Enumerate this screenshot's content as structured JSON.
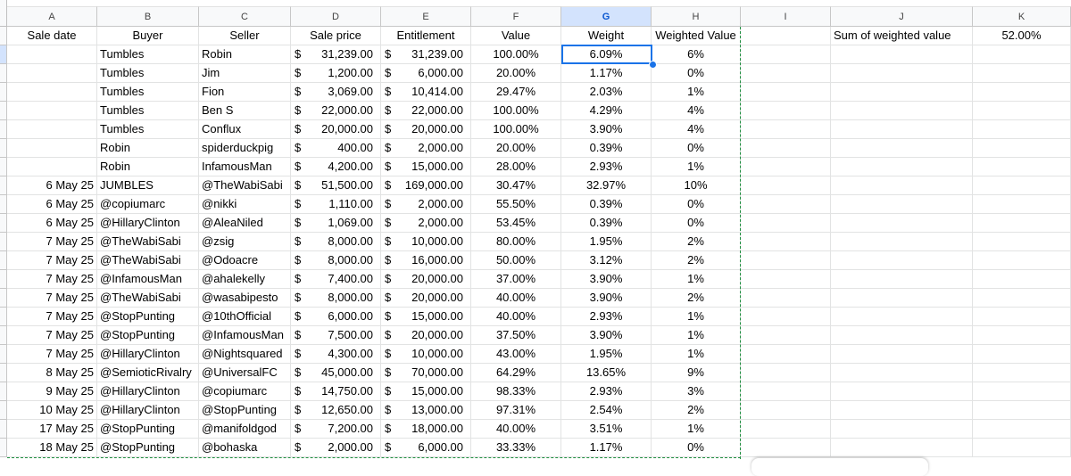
{
  "columns": [
    {
      "letter": "A",
      "header": "Sale date"
    },
    {
      "letter": "B",
      "header": "Buyer"
    },
    {
      "letter": "C",
      "header": "Seller"
    },
    {
      "letter": "D",
      "header": "Sale price"
    },
    {
      "letter": "E",
      "header": "Entitlement"
    },
    {
      "letter": "F",
      "header": "Value"
    },
    {
      "letter": "G",
      "header": "Weight"
    },
    {
      "letter": "H",
      "header": "Weighted Value"
    },
    {
      "letter": "I",
      "header": ""
    },
    {
      "letter": "J",
      "header": "Sum of weighted value"
    },
    {
      "letter": "K",
      "header": "52.00%"
    }
  ],
  "selected_cell": "G2",
  "colors": {
    "selection": "#1a73e8",
    "selected_header": "#d3e3fd",
    "copy_border": "#1e8e3e"
  },
  "currency_symbol": "$",
  "rows": [
    {
      "date": "",
      "buyer": "Tumbles",
      "seller": "Robin",
      "price": "31,239.00",
      "ent": "31,239.00",
      "value": "100.00%",
      "weight": "6.09%",
      "wv": "6%"
    },
    {
      "date": "",
      "buyer": "Tumbles",
      "seller": "Jim",
      "price": "1,200.00",
      "ent": "6,000.00",
      "value": "20.00%",
      "weight": "1.17%",
      "wv": "0%"
    },
    {
      "date": "",
      "buyer": "Tumbles",
      "seller": "Fion",
      "price": "3,069.00",
      "ent": "10,414.00",
      "value": "29.47%",
      "weight": "2.03%",
      "wv": "1%"
    },
    {
      "date": "",
      "buyer": "Tumbles",
      "seller": "Ben S",
      "price": "22,000.00",
      "ent": "22,000.00",
      "value": "100.00%",
      "weight": "4.29%",
      "wv": "4%"
    },
    {
      "date": "",
      "buyer": "Tumbles",
      "seller": "Conflux",
      "price": "20,000.00",
      "ent": "20,000.00",
      "value": "100.00%",
      "weight": "3.90%",
      "wv": "4%"
    },
    {
      "date": "",
      "buyer": "Robin",
      "seller": "spiderduckpig",
      "price": "400.00",
      "ent": "2,000.00",
      "value": "20.00%",
      "weight": "0.39%",
      "wv": "0%"
    },
    {
      "date": "",
      "buyer": "Robin",
      "seller": "InfamousMan",
      "price": "4,200.00",
      "ent": "15,000.00",
      "value": "28.00%",
      "weight": "2.93%",
      "wv": "1%"
    },
    {
      "date": "6 May 25",
      "buyer": "JUMBLES",
      "seller": "@TheWabiSabi",
      "price": "51,500.00",
      "ent": "169,000.00",
      "value": "30.47%",
      "weight": "32.97%",
      "wv": "10%"
    },
    {
      "date": "6 May 25",
      "buyer": "@copiumarc",
      "seller": "@nikki",
      "price": "1,110.00",
      "ent": "2,000.00",
      "value": "55.50%",
      "weight": "0.39%",
      "wv": "0%"
    },
    {
      "date": "6 May 25",
      "buyer": "@HillaryClinton",
      "seller": "@AleaNiled",
      "price": "1,069.00",
      "ent": "2,000.00",
      "value": "53.45%",
      "weight": "0.39%",
      "wv": "0%"
    },
    {
      "date": "7 May 25",
      "buyer": "@TheWabiSabi",
      "seller": "@zsig",
      "price": "8,000.00",
      "ent": "10,000.00",
      "value": "80.00%",
      "weight": "1.95%",
      "wv": "2%"
    },
    {
      "date": "7 May 25",
      "buyer": "@TheWabiSabi",
      "seller": "@Odoacre",
      "price": "8,000.00",
      "ent": "16,000.00",
      "value": "50.00%",
      "weight": "3.12%",
      "wv": "2%"
    },
    {
      "date": "7 May 25",
      "buyer": "@InfamousMan",
      "seller": "@ahalekelly",
      "price": "7,400.00",
      "ent": "20,000.00",
      "value": "37.00%",
      "weight": "3.90%",
      "wv": "1%"
    },
    {
      "date": "7 May 25",
      "buyer": "@TheWabiSabi",
      "seller": "@wasabipesto",
      "price": "8,000.00",
      "ent": "20,000.00",
      "value": "40.00%",
      "weight": "3.90%",
      "wv": "2%"
    },
    {
      "date": "7 May 25",
      "buyer": "@StopPunting",
      "seller": "@10thOfficial",
      "price": "6,000.00",
      "ent": "15,000.00",
      "value": "40.00%",
      "weight": "2.93%",
      "wv": "1%"
    },
    {
      "date": "7 May 25",
      "buyer": "@StopPunting",
      "seller": "@InfamousMan",
      "price": "7,500.00",
      "ent": "20,000.00",
      "value": "37.50%",
      "weight": "3.90%",
      "wv": "1%"
    },
    {
      "date": "7 May 25",
      "buyer": "@HillaryClinton",
      "seller": "@Nightsquared",
      "price": "4,300.00",
      "ent": "10,000.00",
      "value": "43.00%",
      "weight": "1.95%",
      "wv": "1%"
    },
    {
      "date": "8 May 25",
      "buyer": "@SemioticRivalry",
      "seller": "@UniversalFC",
      "price": "45,000.00",
      "ent": "70,000.00",
      "value": "64.29%",
      "weight": "13.65%",
      "wv": "9%"
    },
    {
      "date": "9 May 25",
      "buyer": "@HillaryClinton",
      "seller": "@copiumarc",
      "price": "14,750.00",
      "ent": "15,000.00",
      "value": "98.33%",
      "weight": "2.93%",
      "wv": "3%"
    },
    {
      "date": "10 May 25",
      "buyer": "@HillaryClinton",
      "seller": "@StopPunting",
      "price": "12,650.00",
      "ent": "13,000.00",
      "value": "97.31%",
      "weight": "2.54%",
      "wv": "2%"
    },
    {
      "date": "17 May 25",
      "buyer": "@StopPunting",
      "seller": "@manifoldgod",
      "price": "7,200.00",
      "ent": "18,000.00",
      "value": "40.00%",
      "weight": "3.51%",
      "wv": "1%"
    },
    {
      "date": "18 May 25",
      "buyer": "@StopPunting",
      "seller": "@bohaska",
      "price": "2,000.00",
      "ent": "6,000.00",
      "value": "33.33%",
      "weight": "1.17%",
      "wv": "0%"
    }
  ]
}
